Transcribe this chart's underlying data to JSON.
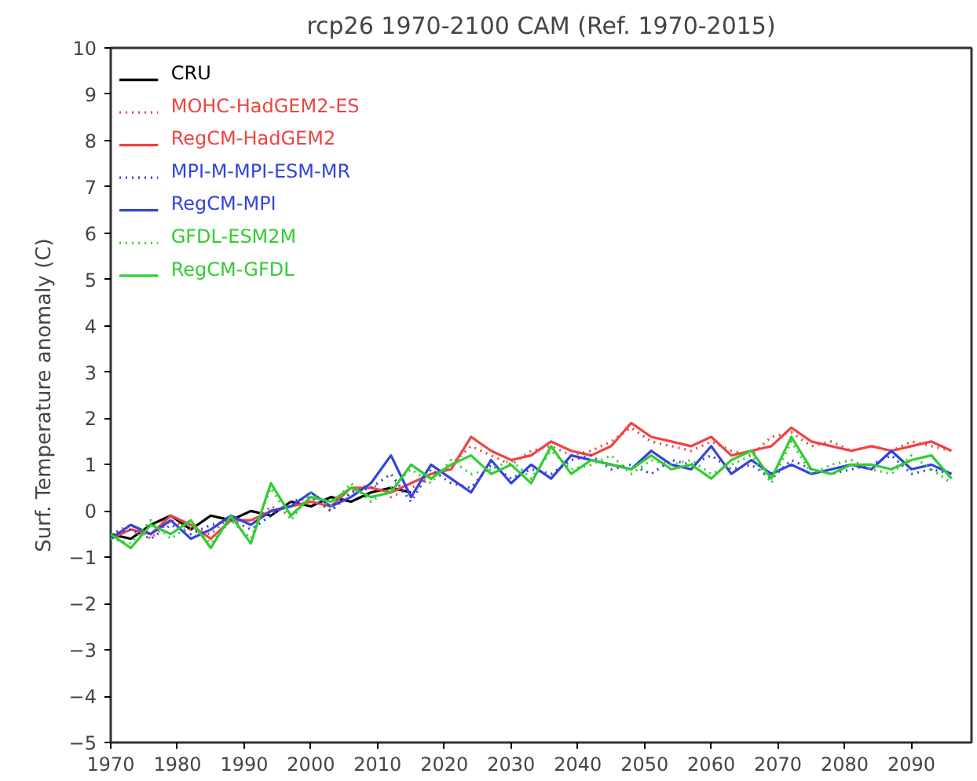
{
  "chart_data": {
    "type": "line",
    "title": "rcp26 1970-2100 CAM (Ref. 1970-2015)",
    "ylabel": "Surf. Temperature anomaly (C)",
    "x": [
      1970,
      1973,
      1976,
      1979,
      1982,
      1985,
      1988,
      1991,
      1994,
      1997,
      2000,
      2003,
      2006,
      2009,
      2012,
      2015,
      2018,
      2021,
      2024,
      2027,
      2030,
      2033,
      2036,
      2039,
      2042,
      2045,
      2048,
      2051,
      2054,
      2057,
      2060,
      2063,
      2066,
      2069,
      2072,
      2075,
      2078,
      2081,
      2084,
      2087,
      2090,
      2093,
      2096
    ],
    "xlim": [
      1970,
      2099
    ],
    "xticks": [
      1970,
      1980,
      1990,
      2000,
      2010,
      2020,
      2030,
      2040,
      2050,
      2060,
      2070,
      2080,
      2090
    ],
    "ylim": [
      -5,
      10
    ],
    "yticks": [
      -5,
      -4,
      -3,
      -2,
      -1,
      0,
      1,
      2,
      3,
      4,
      5,
      6,
      7,
      8,
      9,
      10
    ],
    "grid": false,
    "legend": "top left",
    "series": [
      {
        "name": "CRU",
        "color": "#000000",
        "line_style": "solid",
        "x": [
          1970,
          1973,
          1976,
          1979,
          1982,
          1985,
          1988,
          1991,
          1994,
          1997,
          2000,
          2003,
          2006,
          2009,
          2012,
          2015
        ],
        "values": [
          -0.5,
          -0.6,
          -0.3,
          -0.1,
          -0.4,
          -0.1,
          -0.2,
          0.0,
          -0.1,
          0.2,
          0.1,
          0.3,
          0.2,
          0.4,
          0.5,
          0.4
        ]
      },
      {
        "name": "MOHC-HadGEM2-ES",
        "color": "#ee4444",
        "line_style": "dotted",
        "values": [
          -0.5,
          -0.3,
          -0.6,
          -0.2,
          -0.4,
          -0.5,
          -0.1,
          -0.3,
          0.1,
          -0.1,
          0.3,
          0.0,
          0.4,
          0.6,
          0.3,
          0.5,
          0.7,
          1.0,
          1.4,
          1.2,
          1.0,
          1.3,
          1.4,
          1.2,
          1.3,
          1.5,
          1.8,
          1.5,
          1.4,
          1.3,
          1.5,
          1.3,
          1.2,
          1.6,
          1.7,
          1.4,
          1.5,
          1.3,
          1.4,
          1.3,
          1.5,
          1.4,
          1.3
        ]
      },
      {
        "name": "RegCM-HadGEM2",
        "color": "#ee4444",
        "line_style": "solid",
        "values": [
          -0.6,
          -0.4,
          -0.5,
          -0.1,
          -0.3,
          -0.6,
          -0.2,
          -0.2,
          0.0,
          0.1,
          0.2,
          0.1,
          0.5,
          0.5,
          0.4,
          0.6,
          0.8,
          0.9,
          1.6,
          1.3,
          1.1,
          1.2,
          1.5,
          1.3,
          1.2,
          1.4,
          1.9,
          1.6,
          1.5,
          1.4,
          1.6,
          1.2,
          1.3,
          1.4,
          1.8,
          1.5,
          1.4,
          1.3,
          1.4,
          1.3,
          1.4,
          1.5,
          1.3
        ]
      },
      {
        "name": "MPI-M-MPI-ESM-MR",
        "color": "#3344dd",
        "line_style": "dotted",
        "values": [
          -0.5,
          -0.4,
          -0.6,
          -0.3,
          -0.5,
          -0.3,
          -0.2,
          -0.4,
          -0.1,
          0.2,
          0.3,
          0.0,
          0.4,
          0.5,
          0.8,
          0.2,
          0.9,
          0.6,
          0.5,
          1.0,
          0.7,
          0.9,
          0.8,
          1.1,
          1.2,
          0.9,
          1.0,
          0.8,
          1.1,
          1.0,
          1.2,
          0.9,
          1.0,
          0.7,
          1.1,
          0.9,
          0.8,
          0.9,
          1.0,
          1.2,
          0.8,
          0.9,
          0.8
        ]
      },
      {
        "name": "RegCM-MPI",
        "color": "#3344dd",
        "line_style": "solid",
        "values": [
          -0.6,
          -0.3,
          -0.5,
          -0.2,
          -0.6,
          -0.4,
          -0.1,
          -0.3,
          0.0,
          0.1,
          0.4,
          0.1,
          0.3,
          0.6,
          1.2,
          0.3,
          1.0,
          0.7,
          0.4,
          1.1,
          0.6,
          1.0,
          0.7,
          1.2,
          1.1,
          1.0,
          0.9,
          1.3,
          1.0,
          0.9,
          1.4,
          0.8,
          1.1,
          0.8,
          1.0,
          0.8,
          0.9,
          1.0,
          0.9,
          1.3,
          0.9,
          1.0,
          0.8
        ]
      },
      {
        "name": "GFDL-ESM2M",
        "color": "#33cc33",
        "line_style": "dotted",
        "values": [
          -0.6,
          -0.7,
          -0.2,
          -0.6,
          -0.3,
          -0.7,
          -0.2,
          -0.6,
          0.5,
          -0.2,
          0.4,
          0.1,
          0.6,
          0.2,
          0.5,
          0.9,
          0.6,
          1.1,
          0.8,
          0.9,
          1.1,
          0.7,
          1.3,
          0.9,
          1.0,
          1.2,
          0.8,
          1.1,
          1.0,
          1.1,
          0.8,
          1.0,
          1.2,
          0.6,
          1.5,
          0.8,
          1.0,
          1.1,
          0.9,
          0.8,
          1.2,
          0.9,
          0.6
        ]
      },
      {
        "name": "RegCM-GFDL",
        "color": "#33cc33",
        "line_style": "solid",
        "values": [
          -0.5,
          -0.8,
          -0.3,
          -0.5,
          -0.2,
          -0.8,
          -0.1,
          -0.7,
          0.6,
          -0.1,
          0.3,
          0.2,
          0.5,
          0.3,
          0.4,
          1.0,
          0.7,
          1.0,
          1.2,
          0.8,
          1.0,
          0.6,
          1.4,
          0.8,
          1.1,
          1.0,
          0.9,
          1.2,
          0.9,
          1.0,
          0.7,
          1.1,
          1.3,
          0.7,
          1.6,
          0.9,
          0.8,
          1.0,
          1.0,
          0.9,
          1.1,
          1.2,
          0.7
        ]
      }
    ]
  }
}
